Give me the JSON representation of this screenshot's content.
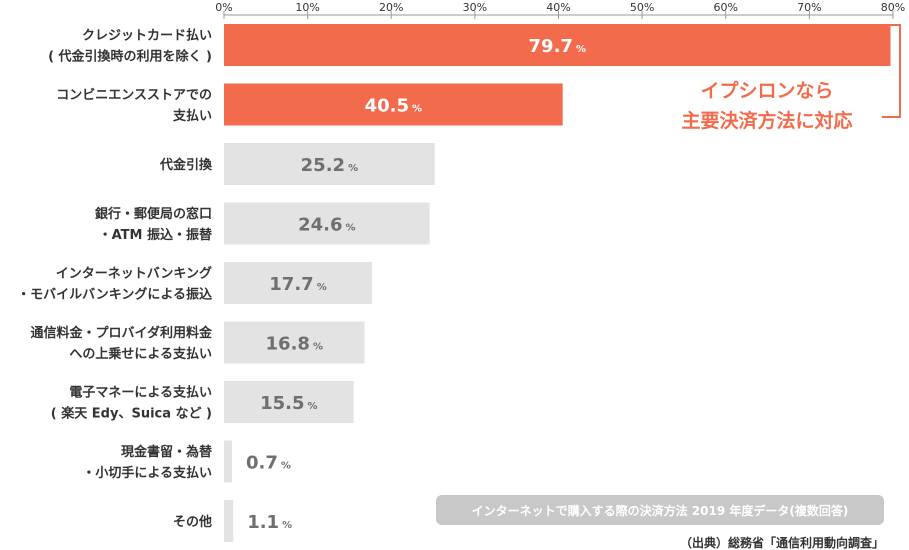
{
  "chart_data": {
    "type": "bar",
    "orientation": "horizontal",
    "xlim": [
      0,
      80
    ],
    "ticks": [
      {
        "value": 0,
        "label": "0%"
      },
      {
        "value": 10,
        "label": "10%"
      },
      {
        "value": 20,
        "label": "20%"
      },
      {
        "value": 30,
        "label": "30%"
      },
      {
        "value": 40,
        "label": "40%"
      },
      {
        "value": 50,
        "label": "50%"
      },
      {
        "value": 60,
        "label": "60%"
      },
      {
        "value": 70,
        "label": "70%"
      },
      {
        "value": 80,
        "label": "80%"
      }
    ],
    "unit": "%",
    "categories": [
      {
        "lines": [
          "クレジットカード払い",
          "( 代金引換時の利用を除く )"
        ],
        "value": 79.7,
        "label": "79.7",
        "highlight": true
      },
      {
        "lines": [
          "コンビニエンスストアでの",
          "支払い"
        ],
        "value": 40.5,
        "label": "40.5",
        "highlight": true
      },
      {
        "lines": [
          "代金引換"
        ],
        "value": 25.2,
        "label": "25.2",
        "highlight": false
      },
      {
        "lines": [
          "銀行・郵便局の窓口",
          "・ATM 振込・振替"
        ],
        "value": 24.6,
        "label": "24.6",
        "highlight": false
      },
      {
        "lines": [
          "インターネットバンキング",
          "・モバイルバンキングによる振込"
        ],
        "value": 17.7,
        "label": "17.7",
        "highlight": false
      },
      {
        "lines": [
          "通信料金・プロバイダ利用料金",
          "への上乗せによる支払い"
        ],
        "value": 16.8,
        "label": "16.8",
        "highlight": false
      },
      {
        "lines": [
          "電子マネーによる支払い",
          "( 楽天 Edy、Suica など )"
        ],
        "value": 15.5,
        "label": "15.5",
        "highlight": false
      },
      {
        "lines": [
          "現金書留・為替",
          "・小切手による支払い"
        ],
        "value": 0.7,
        "label": "0.7",
        "highlight": false
      },
      {
        "lines": [
          "その他"
        ],
        "value": 1.1,
        "label": "1.1",
        "highlight": false
      }
    ],
    "callout": {
      "lines": [
        "イプシロンなら",
        "主要決済方法に対応"
      ]
    },
    "note": "インターネットで購入する際の決済方法 2019 年度データ(複数回答)",
    "source": "（出典）総務省「通信利用動向調査」",
    "grid": false,
    "colors": {
      "highlight_bar": "#f26b4c",
      "bar": "#e3e3e3",
      "highlight_text": "#ffffff",
      "text": "#6f6f6f",
      "note_bg": "#c8c8c8"
    }
  }
}
